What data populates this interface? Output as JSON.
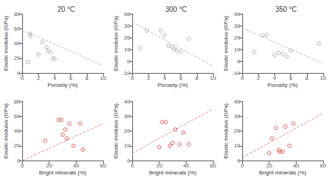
{
  "chart_data": [
    {
      "type": "scatter",
      "title": "20 °C",
      "xlabel": "Porosity (%)",
      "ylabel": "Elastic modulus (GPa)",
      "xlim": [
        0,
        10
      ],
      "xticks": [
        0,
        2,
        4,
        6,
        8,
        10
      ],
      "ylim": [
        0,
        80
      ],
      "yticks": [
        0,
        20,
        40,
        60,
        80
      ],
      "grid": false,
      "series": [
        {
          "type": "scatter",
          "color": "#999999",
          "marker": "open_circle",
          "x": [
            0.7,
            1.0,
            1.0,
            2.0,
            2.5,
            3.0,
            3.2,
            3.5,
            3.8,
            4.0
          ],
          "values": [
            15,
            50,
            53,
            25,
            42,
            35,
            30,
            28,
            20,
            19
          ]
        },
        {
          "type": "line",
          "color": "#bbbbbb",
          "line_style": "dashed",
          "x": [
            0,
            10
          ],
          "values": [
            58,
            10
          ]
        }
      ]
    },
    {
      "type": "scatter",
      "title": "300 °C",
      "xlabel": "Porosity (%)",
      "ylabel": "Elastic modulus (GPa)",
      "xlim": [
        0,
        10
      ],
      "xticks": [
        0,
        2,
        4,
        6,
        8,
        10
      ],
      "ylim": [
        -10,
        40
      ],
      "yticks": [
        -10,
        0,
        10,
        20,
        30,
        40
      ],
      "grid": false,
      "series": [
        {
          "type": "scatter",
          "color": "#999999",
          "marker": "open_circle",
          "x": [
            1.0,
            1.8,
            3.5,
            4.0,
            4.5,
            5.0,
            5.2,
            5.5,
            6.0,
            7.0
          ],
          "values": [
            11,
            26,
            26,
            22,
            13,
            12,
            10,
            9,
            8,
            19
          ]
        },
        {
          "type": "line",
          "color": "#bbbbbb",
          "line_style": "dashed",
          "x": [
            0,
            10
          ],
          "values": [
            33,
            -4
          ]
        }
      ]
    },
    {
      "type": "scatter",
      "title": "350 °C",
      "xlabel": "Porosity (%)",
      "ylabel": "Elastic modulus (GPa)",
      "xlim": [
        0,
        10
      ],
      "xticks": [
        0,
        2,
        4,
        6,
        8,
        10
      ],
      "ylim": [
        -10,
        40
      ],
      "yticks": [
        -10,
        0,
        10,
        20,
        30,
        40
      ],
      "grid": false,
      "series": [
        {
          "type": "scatter",
          "color": "#999999",
          "marker": "open_circle",
          "x": [
            1.5,
            2.5,
            3.0,
            4.0,
            4.5,
            5.0,
            5.5,
            6.0,
            9.5
          ],
          "values": [
            8,
            22,
            22,
            5,
            7,
            6,
            4,
            9,
            15
          ]
        },
        {
          "type": "line",
          "color": "#bbbbbb",
          "line_style": "dashed",
          "x": [
            0,
            10
          ],
          "values": [
            28,
            -2
          ]
        }
      ]
    },
    {
      "type": "scatter",
      "xlabel": "Bright minerals (%)",
      "ylabel": "Elastic modulus (GPa)",
      "xlim": [
        0,
        60
      ],
      "xticks": [
        0,
        20,
        40,
        60
      ],
      "ylim": [
        0,
        80
      ],
      "yticks": [
        0,
        20,
        40,
        60,
        80
      ],
      "grid": false,
      "series": [
        {
          "type": "scatter",
          "color": "#cc2222",
          "marker": "open_circle",
          "x": [
            17,
            27,
            29,
            30,
            32,
            33,
            35,
            38,
            43,
            45
          ],
          "values": [
            27,
            55,
            55,
            35,
            42,
            30,
            50,
            20,
            50,
            15
          ]
        },
        {
          "type": "line",
          "color": "#dd8888",
          "line_style": "dashed",
          "x": [
            0,
            60
          ],
          "values": [
            0,
            50
          ]
        }
      ]
    },
    {
      "type": "scatter",
      "xlabel": "Bright minerals (%)",
      "ylabel": "Elastic modulus (GPa)",
      "xlim": [
        0,
        60
      ],
      "xticks": [
        0,
        20,
        40,
        60
      ],
      "ylim": [
        0,
        40
      ],
      "yticks": [
        0,
        10,
        20,
        30,
        40
      ],
      "grid": false,
      "series": [
        {
          "type": "scatter",
          "color": "#cc2222",
          "marker": "open_circle",
          "x": [
            20,
            22,
            25,
            28,
            30,
            32,
            35,
            38,
            42
          ],
          "values": [
            9,
            26,
            26,
            10,
            12,
            21,
            11,
            19,
            11
          ]
        },
        {
          "type": "line",
          "color": "#dd8888",
          "line_style": "dashed",
          "x": [
            0,
            60
          ],
          "values": [
            5,
            35
          ]
        }
      ]
    },
    {
      "type": "scatter",
      "xlabel": "Bright minerals (%)",
      "ylabel": "Elastic modulus (GPa)",
      "xlim": [
        0,
        60
      ],
      "xticks": [
        0,
        20,
        40,
        60
      ],
      "ylim": [
        0,
        40
      ],
      "yticks": [
        0,
        10,
        20,
        30,
        40
      ],
      "grid": false,
      "series": [
        {
          "type": "scatter",
          "color": "#cc2222",
          "marker": "open_circle",
          "x": [
            20,
            22,
            25,
            27,
            28,
            30,
            32,
            35,
            38
          ],
          "values": [
            5,
            15,
            22,
            7,
            6,
            6,
            23,
            10,
            25
          ]
        },
        {
          "type": "line",
          "color": "#dd8888",
          "line_style": "dashed",
          "x": [
            0,
            60
          ],
          "values": [
            2,
            32
          ]
        }
      ]
    }
  ]
}
